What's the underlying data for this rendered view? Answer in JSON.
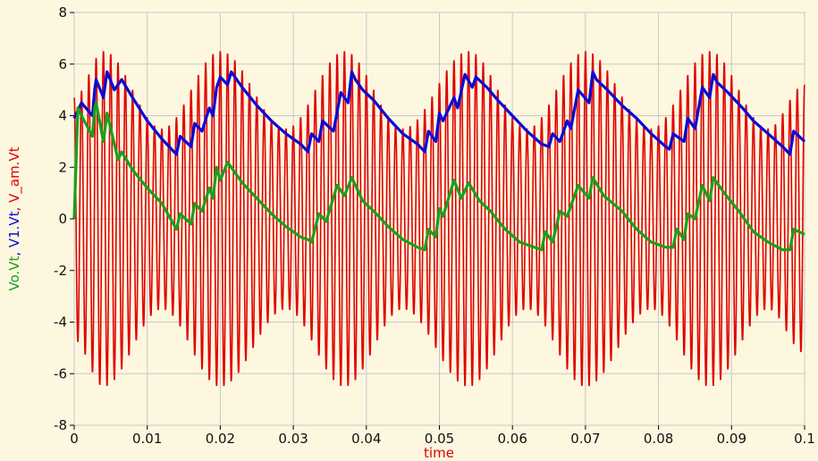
{
  "chart_data": {
    "type": "line",
    "xlabel": "time",
    "ylabels": [
      {
        "text": "Vo.Vt",
        "color": "#1aa01a"
      },
      {
        "text": "V1.Vt",
        "color": "#0a0ad8"
      },
      {
        "text": "V_am.Vt",
        "color": "#e00000"
      }
    ],
    "xlim": [
      0,
      0.1
    ],
    "ylim": [
      -8,
      8
    ],
    "x_ticks": [
      "0",
      "0.01",
      "0.02",
      "0.03",
      "0.04",
      "0.05",
      "0.06",
      "0.07",
      "0.08",
      "0.09",
      "0.1"
    ],
    "y_ticks": [
      "8",
      "6",
      "4",
      "2",
      "0",
      "-2",
      "-4",
      "-6",
      "-8"
    ],
    "grid": true,
    "background": "#fdf7e0",
    "series": [
      {
        "name": "V_am.Vt",
        "color": "#e00000",
        "carrier_freq_hz": 1000,
        "modulation_freq_hz": 60,
        "envelope_note": "AM signal, peak amplitude about 3.5 to 6.5",
        "envelope_peaks": [
          [
            0,
            4.7
          ],
          [
            0.004,
            6.5
          ],
          [
            0.012,
            3.5
          ],
          [
            0.02,
            6.5
          ],
          [
            0.029,
            3.5
          ],
          [
            0.037,
            6.5
          ],
          [
            0.045,
            3.5
          ],
          [
            0.054,
            6.5
          ],
          [
            0.062,
            3.5
          ],
          [
            0.07,
            6.5
          ],
          [
            0.079,
            3.5
          ],
          [
            0.087,
            6.5
          ],
          [
            0.095,
            3.5
          ],
          [
            0.1,
            5.2
          ]
        ]
      },
      {
        "name": "V1.Vt",
        "color": "#0a0ad8",
        "points": [
          [
            0,
            3.9
          ],
          [
            0.001,
            4.5
          ],
          [
            0.0025,
            4.0
          ],
          [
            0.0028,
            5.0
          ],
          [
            0.003,
            5.4
          ],
          [
            0.004,
            4.7
          ],
          [
            0.0045,
            5.7
          ],
          [
            0.0055,
            5.0
          ],
          [
            0.006,
            5.2
          ],
          [
            0.0065,
            5.4
          ],
          [
            0.008,
            4.7
          ],
          [
            0.01,
            3.8
          ],
          [
            0.012,
            3.1
          ],
          [
            0.014,
            2.5
          ],
          [
            0.0145,
            3.2
          ],
          [
            0.016,
            2.8
          ],
          [
            0.0165,
            3.7
          ],
          [
            0.0175,
            3.4
          ],
          [
            0.0185,
            4.3
          ],
          [
            0.019,
            4.0
          ],
          [
            0.0195,
            5.1
          ],
          [
            0.02,
            5.5
          ],
          [
            0.021,
            5.2
          ],
          [
            0.0215,
            5.7
          ],
          [
            0.023,
            5.1
          ],
          [
            0.025,
            4.4
          ],
          [
            0.027,
            3.8
          ],
          [
            0.029,
            3.3
          ],
          [
            0.031,
            2.9
          ],
          [
            0.032,
            2.6
          ],
          [
            0.0325,
            3.3
          ],
          [
            0.0335,
            3.0
          ],
          [
            0.034,
            3.8
          ],
          [
            0.0355,
            3.4
          ],
          [
            0.0365,
            4.9
          ],
          [
            0.0375,
            4.5
          ],
          [
            0.038,
            5.7
          ],
          [
            0.0385,
            5.4
          ],
          [
            0.0395,
            5.0
          ],
          [
            0.041,
            4.6
          ],
          [
            0.043,
            3.9
          ],
          [
            0.045,
            3.3
          ],
          [
            0.047,
            2.9
          ],
          [
            0.048,
            2.6
          ],
          [
            0.0485,
            3.4
          ],
          [
            0.0495,
            3.0
          ],
          [
            0.05,
            4.1
          ],
          [
            0.0505,
            3.8
          ],
          [
            0.052,
            4.7
          ],
          [
            0.0525,
            4.3
          ],
          [
            0.0535,
            5.6
          ],
          [
            0.0545,
            5.1
          ],
          [
            0.055,
            5.5
          ],
          [
            0.0565,
            5.1
          ],
          [
            0.058,
            4.6
          ],
          [
            0.06,
            4.0
          ],
          [
            0.062,
            3.4
          ],
          [
            0.064,
            2.9
          ],
          [
            0.065,
            2.8
          ],
          [
            0.0655,
            3.3
          ],
          [
            0.0665,
            3.0
          ],
          [
            0.0675,
            3.8
          ],
          [
            0.068,
            3.5
          ],
          [
            0.069,
            5.0
          ],
          [
            0.0705,
            4.5
          ],
          [
            0.071,
            5.7
          ],
          [
            0.0715,
            5.4
          ],
          [
            0.073,
            5.0
          ],
          [
            0.075,
            4.4
          ],
          [
            0.077,
            3.9
          ],
          [
            0.079,
            3.3
          ],
          [
            0.081,
            2.8
          ],
          [
            0.0815,
            2.7
          ],
          [
            0.082,
            3.3
          ],
          [
            0.0835,
            3.0
          ],
          [
            0.084,
            3.9
          ],
          [
            0.085,
            3.5
          ],
          [
            0.086,
            5.1
          ],
          [
            0.087,
            4.7
          ],
          [
            0.0875,
            5.6
          ],
          [
            0.088,
            5.3
          ],
          [
            0.0895,
            4.9
          ],
          [
            0.0915,
            4.3
          ],
          [
            0.093,
            3.8
          ],
          [
            0.095,
            3.3
          ],
          [
            0.097,
            2.8
          ],
          [
            0.098,
            2.5
          ],
          [
            0.0985,
            3.4
          ],
          [
            0.1,
            3.0
          ]
        ]
      },
      {
        "name": "Vo.Vt",
        "color": "#1aa01a",
        "points": [
          [
            0,
            0.0
          ],
          [
            0.0005,
            4.3
          ],
          [
            0.001,
            4.0
          ],
          [
            0.0025,
            3.2
          ],
          [
            0.0028,
            4.3
          ],
          [
            0.003,
            4.5
          ],
          [
            0.004,
            3.0
          ],
          [
            0.0045,
            4.1
          ],
          [
            0.006,
            2.3
          ],
          [
            0.0065,
            2.6
          ],
          [
            0.008,
            1.9
          ],
          [
            0.01,
            1.2
          ],
          [
            0.012,
            0.6
          ],
          [
            0.014,
            -0.4
          ],
          [
            0.0145,
            0.2
          ],
          [
            0.016,
            -0.2
          ],
          [
            0.0165,
            0.6
          ],
          [
            0.0175,
            0.3
          ],
          [
            0.0185,
            1.2
          ],
          [
            0.019,
            0.8
          ],
          [
            0.0195,
            2.0
          ],
          [
            0.02,
            1.5
          ],
          [
            0.021,
            2.2
          ],
          [
            0.023,
            1.4
          ],
          [
            0.025,
            0.8
          ],
          [
            0.027,
            0.2
          ],
          [
            0.029,
            -0.3
          ],
          [
            0.031,
            -0.7
          ],
          [
            0.032,
            -0.8
          ],
          [
            0.0325,
            -0.9
          ],
          [
            0.0335,
            0.2
          ],
          [
            0.0345,
            -0.1
          ],
          [
            0.036,
            1.3
          ],
          [
            0.037,
            0.9
          ],
          [
            0.038,
            1.6
          ],
          [
            0.0395,
            0.7
          ],
          [
            0.041,
            0.3
          ],
          [
            0.043,
            -0.3
          ],
          [
            0.045,
            -0.8
          ],
          [
            0.047,
            -1.1
          ],
          [
            0.048,
            -1.2
          ],
          [
            0.0485,
            -0.4
          ],
          [
            0.0495,
            -0.7
          ],
          [
            0.05,
            0.4
          ],
          [
            0.0505,
            0.1
          ],
          [
            0.052,
            1.5
          ],
          [
            0.053,
            0.8
          ],
          [
            0.054,
            1.4
          ],
          [
            0.0555,
            0.7
          ],
          [
            0.057,
            0.3
          ],
          [
            0.059,
            -0.4
          ],
          [
            0.061,
            -0.9
          ],
          [
            0.063,
            -1.1
          ],
          [
            0.064,
            -1.2
          ],
          [
            0.0645,
            -0.5
          ],
          [
            0.0655,
            -0.9
          ],
          [
            0.0665,
            0.3
          ],
          [
            0.0675,
            0.1
          ],
          [
            0.069,
            1.3
          ],
          [
            0.0705,
            0.8
          ],
          [
            0.071,
            1.6
          ],
          [
            0.0725,
            0.9
          ],
          [
            0.075,
            0.3
          ],
          [
            0.077,
            -0.4
          ],
          [
            0.079,
            -0.9
          ],
          [
            0.081,
            -1.1
          ],
          [
            0.082,
            -1.1
          ],
          [
            0.0825,
            -0.4
          ],
          [
            0.0835,
            -0.8
          ],
          [
            0.084,
            0.2
          ],
          [
            0.085,
            0.0
          ],
          [
            0.086,
            1.3
          ],
          [
            0.087,
            0.7
          ],
          [
            0.0875,
            1.6
          ],
          [
            0.089,
            1.0
          ],
          [
            0.091,
            0.3
          ],
          [
            0.093,
            -0.5
          ],
          [
            0.095,
            -0.9
          ],
          [
            0.097,
            -1.2
          ],
          [
            0.098,
            -1.2
          ],
          [
            0.0985,
            -0.4
          ],
          [
            0.1,
            -0.6
          ]
        ]
      }
    ]
  }
}
